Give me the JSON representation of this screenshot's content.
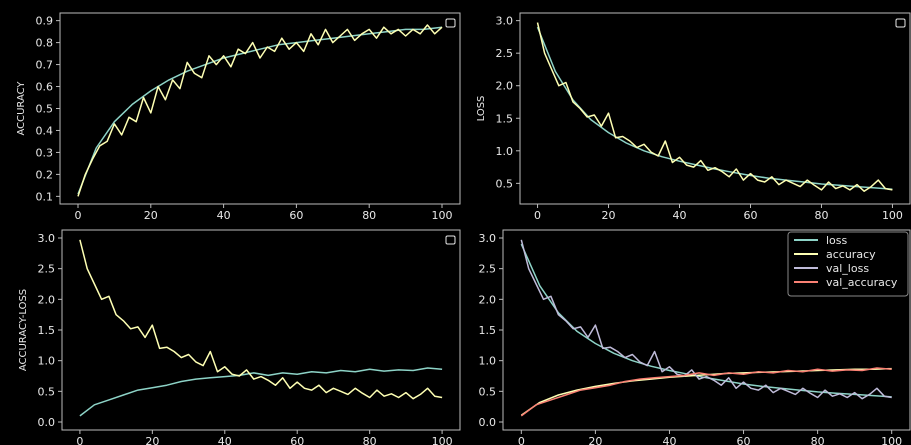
{
  "colors": {
    "background": "#000000",
    "axis_frame": "#bbbbbb",
    "text": "#e8e8e8",
    "loss": "#8dd3c7",
    "accuracy": "#feffb3",
    "val_loss": "#bfbbd9",
    "val_accuracy": "#fa8174"
  },
  "chart_data": [
    {
      "type": "line",
      "ylabel": "ACCURACY",
      "xlabel": "",
      "xlim": [
        0,
        100
      ],
      "ylim": [
        0.1,
        0.9
      ],
      "xticks": [
        0,
        20,
        40,
        60,
        80,
        100
      ],
      "yticks": [
        0.1,
        0.2,
        0.3,
        0.4,
        0.5,
        0.6,
        0.7,
        0.8,
        0.9
      ],
      "legend": "empty box, top-right",
      "series": [
        {
          "key": "smooth",
          "color": "#8dd3c7",
          "x": [
            0,
            5,
            10,
            15,
            20,
            25,
            30,
            35,
            40,
            45,
            50,
            55,
            60,
            65,
            70,
            75,
            80,
            85,
            90,
            95,
            100
          ],
          "values": [
            0.11,
            0.32,
            0.44,
            0.52,
            0.58,
            0.63,
            0.67,
            0.7,
            0.73,
            0.75,
            0.77,
            0.79,
            0.8,
            0.81,
            0.82,
            0.83,
            0.84,
            0.85,
            0.86,
            0.86,
            0.87
          ]
        },
        {
          "key": "noisy",
          "color": "#feffb3",
          "x": [
            0,
            2,
            4,
            6,
            8,
            10,
            12,
            14,
            16,
            18,
            20,
            22,
            24,
            26,
            28,
            30,
            32,
            34,
            36,
            38,
            40,
            42,
            44,
            46,
            48,
            50,
            52,
            54,
            56,
            58,
            60,
            62,
            64,
            66,
            68,
            70,
            72,
            74,
            76,
            78,
            80,
            82,
            84,
            86,
            88,
            90,
            92,
            94,
            96,
            98,
            100
          ],
          "values": [
            0.1,
            0.2,
            0.27,
            0.33,
            0.35,
            0.43,
            0.38,
            0.46,
            0.44,
            0.55,
            0.48,
            0.6,
            0.54,
            0.63,
            0.59,
            0.71,
            0.66,
            0.64,
            0.74,
            0.7,
            0.74,
            0.69,
            0.77,
            0.75,
            0.8,
            0.73,
            0.78,
            0.76,
            0.82,
            0.77,
            0.8,
            0.76,
            0.84,
            0.79,
            0.86,
            0.8,
            0.83,
            0.86,
            0.81,
            0.84,
            0.86,
            0.82,
            0.87,
            0.84,
            0.86,
            0.83,
            0.86,
            0.84,
            0.88,
            0.84,
            0.87
          ]
        }
      ]
    },
    {
      "type": "line",
      "ylabel": "LOSS",
      "xlabel": "",
      "xlim": [
        0,
        100
      ],
      "ylim": [
        0.3,
        3.0
      ],
      "xticks": [
        0,
        20,
        40,
        60,
        80,
        100
      ],
      "yticks": [
        0.5,
        1.0,
        1.5,
        2.0,
        2.5,
        3.0
      ],
      "legend": "empty box, top-right",
      "series": [
        {
          "key": "smooth",
          "color": "#8dd3c7",
          "x": [
            0,
            5,
            10,
            15,
            20,
            25,
            30,
            35,
            40,
            45,
            50,
            55,
            60,
            65,
            70,
            75,
            80,
            85,
            90,
            95,
            100
          ],
          "values": [
            2.9,
            2.22,
            1.78,
            1.48,
            1.28,
            1.12,
            1.0,
            0.91,
            0.84,
            0.78,
            0.72,
            0.67,
            0.62,
            0.58,
            0.55,
            0.52,
            0.49,
            0.47,
            0.45,
            0.43,
            0.41
          ]
        },
        {
          "key": "noisy",
          "color": "#feffb3",
          "x": [
            0,
            2,
            4,
            6,
            8,
            10,
            12,
            14,
            16,
            18,
            20,
            22,
            24,
            26,
            28,
            30,
            32,
            34,
            36,
            38,
            40,
            42,
            44,
            46,
            48,
            50,
            52,
            54,
            56,
            58,
            60,
            62,
            64,
            66,
            68,
            70,
            72,
            74,
            76,
            78,
            80,
            82,
            84,
            86,
            88,
            90,
            92,
            94,
            96,
            98,
            100
          ],
          "values": [
            2.97,
            2.5,
            2.25,
            2.0,
            2.05,
            1.75,
            1.65,
            1.52,
            1.55,
            1.38,
            1.58,
            1.2,
            1.22,
            1.15,
            1.05,
            1.1,
            0.98,
            0.92,
            1.15,
            0.82,
            0.9,
            0.78,
            0.75,
            0.85,
            0.7,
            0.74,
            0.68,
            0.6,
            0.72,
            0.55,
            0.65,
            0.55,
            0.52,
            0.6,
            0.48,
            0.55,
            0.5,
            0.45,
            0.55,
            0.47,
            0.4,
            0.52,
            0.42,
            0.46,
            0.4,
            0.48,
            0.38,
            0.45,
            0.55,
            0.42,
            0.4
          ]
        }
      ]
    },
    {
      "type": "line",
      "ylabel": "ACCURACY-LOSS",
      "xlabel": "",
      "xlim": [
        0,
        100
      ],
      "ylim": [
        0.0,
        3.0
      ],
      "xticks": [
        0,
        20,
        40,
        60,
        80,
        100
      ],
      "yticks": [
        0.0,
        0.5,
        1.0,
        1.5,
        2.0,
        2.5,
        3.0
      ],
      "legend": "empty box, top-right",
      "series": [
        {
          "key": "accuracy",
          "color": "#8dd3c7",
          "x": [
            0,
            4,
            8,
            12,
            16,
            20,
            24,
            28,
            32,
            36,
            40,
            44,
            48,
            52,
            56,
            60,
            64,
            68,
            72,
            76,
            80,
            84,
            88,
            92,
            96,
            100
          ],
          "values": [
            0.1,
            0.28,
            0.36,
            0.44,
            0.52,
            0.56,
            0.6,
            0.66,
            0.7,
            0.72,
            0.74,
            0.76,
            0.8,
            0.76,
            0.8,
            0.78,
            0.82,
            0.8,
            0.84,
            0.82,
            0.86,
            0.83,
            0.85,
            0.84,
            0.88,
            0.86
          ]
        },
        {
          "key": "loss",
          "color": "#feffb3",
          "x": [
            0,
            2,
            4,
            6,
            8,
            10,
            12,
            14,
            16,
            18,
            20,
            22,
            24,
            26,
            28,
            30,
            32,
            34,
            36,
            38,
            40,
            42,
            44,
            46,
            48,
            50,
            52,
            54,
            56,
            58,
            60,
            62,
            64,
            66,
            68,
            70,
            72,
            74,
            76,
            78,
            80,
            82,
            84,
            86,
            88,
            90,
            92,
            94,
            96,
            98,
            100
          ],
          "values": [
            2.97,
            2.5,
            2.25,
            2.0,
            2.05,
            1.75,
            1.65,
            1.52,
            1.55,
            1.38,
            1.58,
            1.2,
            1.22,
            1.15,
            1.05,
            1.1,
            0.98,
            0.92,
            1.15,
            0.82,
            0.9,
            0.78,
            0.75,
            0.85,
            0.7,
            0.74,
            0.68,
            0.6,
            0.72,
            0.55,
            0.65,
            0.55,
            0.52,
            0.6,
            0.48,
            0.55,
            0.5,
            0.45,
            0.55,
            0.47,
            0.4,
            0.52,
            0.42,
            0.46,
            0.4,
            0.48,
            0.38,
            0.45,
            0.55,
            0.42,
            0.4
          ]
        }
      ]
    },
    {
      "type": "line",
      "ylabel": "",
      "xlabel": "",
      "xlim": [
        0,
        100
      ],
      "ylim": [
        0.0,
        3.0
      ],
      "xticks": [
        0,
        20,
        40,
        60,
        80,
        100
      ],
      "yticks": [
        0.0,
        0.5,
        1.0,
        1.5,
        2.0,
        2.5,
        3.0
      ],
      "legend": "top-right",
      "series": [
        {
          "name": "loss",
          "color": "#8dd3c7",
          "x": [
            0,
            5,
            10,
            15,
            20,
            25,
            30,
            35,
            40,
            45,
            50,
            55,
            60,
            65,
            70,
            75,
            80,
            85,
            90,
            95,
            100
          ],
          "values": [
            2.9,
            2.22,
            1.78,
            1.48,
            1.28,
            1.12,
            1.0,
            0.91,
            0.84,
            0.78,
            0.72,
            0.67,
            0.62,
            0.58,
            0.55,
            0.52,
            0.49,
            0.47,
            0.45,
            0.43,
            0.41
          ]
        },
        {
          "name": "accuracy",
          "color": "#feffb3",
          "x": [
            0,
            5,
            10,
            15,
            20,
            25,
            30,
            35,
            40,
            45,
            50,
            55,
            60,
            65,
            70,
            75,
            80,
            85,
            90,
            95,
            100
          ],
          "values": [
            0.11,
            0.32,
            0.44,
            0.52,
            0.58,
            0.63,
            0.67,
            0.7,
            0.73,
            0.75,
            0.77,
            0.79,
            0.8,
            0.81,
            0.82,
            0.83,
            0.84,
            0.85,
            0.86,
            0.86,
            0.87
          ]
        },
        {
          "name": "val_loss",
          "color": "#bfbbd9",
          "x": [
            0,
            2,
            4,
            6,
            8,
            10,
            12,
            14,
            16,
            18,
            20,
            22,
            24,
            26,
            28,
            30,
            32,
            34,
            36,
            38,
            40,
            42,
            44,
            46,
            48,
            50,
            52,
            54,
            56,
            58,
            60,
            62,
            64,
            66,
            68,
            70,
            72,
            74,
            76,
            78,
            80,
            82,
            84,
            86,
            88,
            90,
            92,
            94,
            96,
            98,
            100
          ],
          "values": [
            2.97,
            2.5,
            2.25,
            2.0,
            2.05,
            1.75,
            1.65,
            1.52,
            1.55,
            1.38,
            1.58,
            1.2,
            1.22,
            1.15,
            1.05,
            1.1,
            0.98,
            0.92,
            1.15,
            0.82,
            0.9,
            0.78,
            0.75,
            0.85,
            0.7,
            0.74,
            0.68,
            0.6,
            0.72,
            0.55,
            0.65,
            0.55,
            0.52,
            0.6,
            0.48,
            0.55,
            0.5,
            0.45,
            0.55,
            0.47,
            0.4,
            0.52,
            0.42,
            0.46,
            0.4,
            0.48,
            0.38,
            0.45,
            0.55,
            0.42,
            0.4
          ]
        },
        {
          "name": "val_accuracy",
          "color": "#fa8174",
          "x": [
            0,
            4,
            8,
            12,
            16,
            20,
            24,
            28,
            32,
            36,
            40,
            44,
            48,
            52,
            56,
            60,
            64,
            68,
            72,
            76,
            80,
            84,
            88,
            92,
            96,
            100
          ],
          "values": [
            0.1,
            0.28,
            0.36,
            0.44,
            0.52,
            0.56,
            0.6,
            0.66,
            0.7,
            0.72,
            0.74,
            0.76,
            0.8,
            0.76,
            0.8,
            0.78,
            0.82,
            0.8,
            0.84,
            0.82,
            0.86,
            0.83,
            0.85,
            0.84,
            0.88,
            0.86
          ]
        }
      ]
    }
  ]
}
